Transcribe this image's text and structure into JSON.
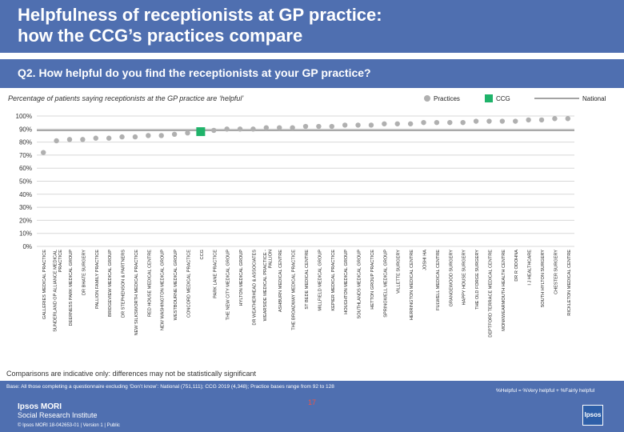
{
  "header": {
    "title_line1": "Helpfulness of receptionists at GP practice:",
    "title_line2": "how the CCG’s practices compare"
  },
  "question": "Q2. How helpful do you find the receptionists at your GP practice?",
  "subtitle": "Percentage of patients saying receptionists at the GP practice are ‘helpful’",
  "legend": {
    "practices": "Practices",
    "ccg": "CCG",
    "national": "National"
  },
  "colors": {
    "brand": "#4f6fb0",
    "practice_dot": "#b0b0b0",
    "ccg_marker": "#1fb36a",
    "national_line": "#a3a3a3",
    "grid": "#d8d8d8"
  },
  "note": "Comparisons are indicative only: differences may not be statistically significant",
  "footer": {
    "base": "Base: All those completing a questionnaire excluding ‘Don’t know’: National (751,111); CCG 2019 (4,348); Practice bases range from 92 to 128",
    "formula": "%Helpful = %Very helpful + %Fairly helpful",
    "page": "17",
    "brand_line1": "Ipsos MORI",
    "brand_line2": "Social Research Institute",
    "copyright": "© Ipsos MORI    18-042653-01 | Version 1 | Public",
    "logo": "Ipsos"
  },
  "chart_data": {
    "type": "scatter",
    "title": "Percentage of patients saying receptionists at the GP practice are ‘helpful’",
    "ylim": [
      0,
      100
    ],
    "yticks": [
      "0%",
      "10%",
      "20%",
      "30%",
      "40%",
      "50%",
      "60%",
      "70%",
      "80%",
      "90%",
      "100%"
    ],
    "national_value": 89,
    "categories": [
      "GALLERIES MEDICAL PRACTICE",
      "SUNDERLAND GP ALLIANCE MEDICAL PRACTICE",
      "DEERNESS PARK MEDICAL GROUP",
      "DR BHATE SURGERY",
      "PALLION FAMILY PRACTICE",
      "BRIDGEVIEW MEDICAL GROUP",
      "DR STEPHENSON & PARTNERS",
      "NEW SILKSWORTH MEDICAL PRACTICE",
      "RED HOUSE MEDICAL CENTRE",
      "NEW WASHINGTON MEDICAL GROUP",
      "WESTBOURNE MEDICAL GROUP",
      "CONCORD MEDICAL PRACTICE",
      "CCG",
      "PARK LANE PRACTICE",
      "THE NEW CITY MEDICAL GROUP",
      "HYLTON MEDICAL GROUP",
      "DR WEATHERHEAD & ASSOCIATES",
      "WEARSIDE MEDICAL PRACTICE - PALLION",
      "ASHBURN MEDICAL CENTRE",
      "THE BROADWAY MEDICAL PRACTICE",
      "ST BEDE MEDICAL CENTRE",
      "MILLFIELD MEDICAL GROUP",
      "KEPIER MEDICAL PRACTICE",
      "HOUGHTON MEDICAL GROUP",
      "SOUTHLANDS MEDICAL GROUP",
      "HETTON GROUP PRACTICE",
      "SPRINGWELL MEDICAL GROUP",
      "VILLETTE SURGERY",
      "HERRINGTON MEDICAL CENTRE",
      "JOSHI HA",
      "FULWELL MEDICAL CENTRE",
      "GRANGEWOOD SURGERY",
      "HAPPY HOUSE SURGERY",
      "THE OLD FORGE SURGERY",
      "DEPTFORD TERRACE MEDICAL CENTRE",
      "MONKWEARMOUTH HEALTH CENTRE",
      "DR R ODOHNA",
      "I J HEALTHCARE",
      "SOUTH HYLTON SURGERY",
      "CHESTER SURGERY",
      "RICKLETON MEDICAL CENTRE"
    ],
    "values": [
      72,
      81,
      82,
      82,
      83,
      83,
      84,
      84,
      85,
      85,
      86,
      87,
      88,
      89,
      90,
      90,
      90,
      91,
      91,
      91,
      92,
      92,
      92,
      93,
      93,
      93,
      94,
      94,
      94,
      95,
      95,
      95,
      95,
      96,
      96,
      96,
      96,
      97,
      97,
      98,
      98
    ],
    "ccg_index": 12
  }
}
